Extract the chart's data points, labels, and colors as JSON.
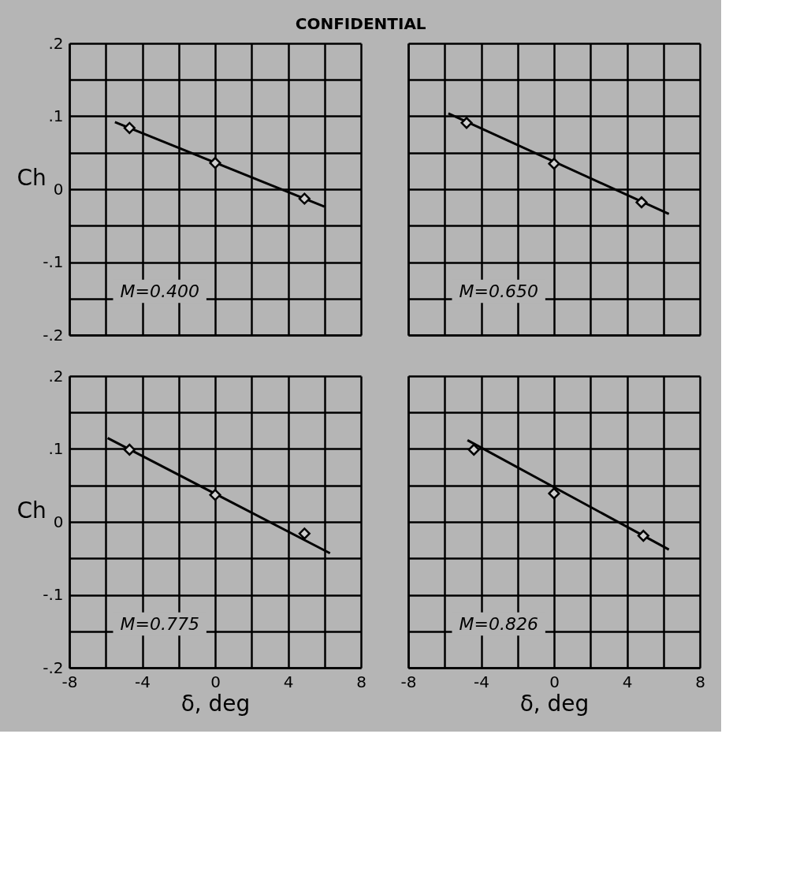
{
  "chart_data": [
    {
      "type": "scatter",
      "title": "CONFIDENTIAL",
      "ylabel": "Ch",
      "annotations": [
        "M=0.400"
      ],
      "xlim": [
        -8,
        8
      ],
      "ylim": [
        -0.2,
        0.2
      ],
      "xticks": [
        {
          "value": -8,
          "label": null
        },
        {
          "value": -6,
          "label": null
        },
        {
          "value": -4,
          "label": null
        },
        {
          "value": -2,
          "label": null
        },
        {
          "value": 0,
          "label": null
        },
        {
          "value": 2,
          "label": null
        },
        {
          "value": 4,
          "label": null
        },
        {
          "value": 6,
          "label": null
        },
        {
          "value": 8,
          "label": null
        }
      ],
      "yticks": [
        {
          "value": -0.2,
          "label": "-.2"
        },
        {
          "value": -0.15,
          "label": null
        },
        {
          "value": -0.1,
          "label": "-.1"
        },
        {
          "value": -0.05,
          "label": null
        },
        0,
        {
          "value": 0.05,
          "label": null
        },
        {
          "value": 0.1,
          "label": ".1"
        },
        {
          "value": 0.15,
          "label": null
        },
        {
          "value": 0.2,
          "label": ".2"
        }
      ],
      "grid": true,
      "tick_labels": "y",
      "series": [
        {
          "type": "line",
          "color": "#000000",
          "line_style": "solid",
          "marker": "none",
          "x": [
            -5.5,
            6.0
          ],
          "values": [
            0.092,
            -0.024
          ]
        },
        {
          "type": "scatter",
          "color": "#000000",
          "marker": "diamond",
          "x": [
            -4.7,
            0,
            4.9
          ],
          "values": [
            0.084,
            0.036,
            -0.013
          ]
        }
      ]
    },
    {
      "type": "scatter",
      "annotations": [
        "M=0.650"
      ],
      "xlim": [
        -8,
        8
      ],
      "ylim": [
        -0.2,
        0.2
      ],
      "xticks": [
        {
          "value": -8,
          "label": null
        },
        {
          "value": -6,
          "label": null
        },
        {
          "value": -4,
          "label": null
        },
        {
          "value": -2,
          "label": null
        },
        {
          "value": 0,
          "label": null
        },
        {
          "value": 2,
          "label": null
        },
        {
          "value": 4,
          "label": null
        },
        {
          "value": 6,
          "label": null
        },
        {
          "value": 8,
          "label": null
        }
      ],
      "yticks": [
        {
          "value": -0.2,
          "label": null
        },
        {
          "value": -0.15,
          "label": null
        },
        {
          "value": -0.1,
          "label": null
        },
        {
          "value": -0.05,
          "label": null
        },
        {
          "value": 0,
          "label": null
        },
        {
          "value": 0.05,
          "label": null
        },
        {
          "value": 0.1,
          "label": null
        },
        {
          "value": 0.15,
          "label": null
        },
        {
          "value": 0.2,
          "label": null
        }
      ],
      "grid": true,
      "tick_labels": false,
      "series": [
        {
          "type": "line",
          "color": "#000000",
          "line_style": "solid",
          "marker": "none",
          "x": [
            -5.8,
            6.3
          ],
          "values": [
            0.104,
            -0.034
          ]
        },
        {
          "type": "scatter",
          "color": "#000000",
          "marker": "diamond",
          "x": [
            -4.8,
            0,
            4.8
          ],
          "values": [
            0.091,
            0.035,
            -0.018
          ]
        }
      ]
    },
    {
      "type": "scatter",
      "ylabel": "Ch",
      "xlabel": "δ, deg",
      "annotations": [
        "M=0.775"
      ],
      "xlim": [
        -8,
        8
      ],
      "ylim": [
        -0.2,
        0.2
      ],
      "xticks": [
        -8,
        {
          "value": -6,
          "label": null
        },
        -4,
        {
          "value": -2,
          "label": null
        },
        0,
        {
          "value": 2,
          "label": null
        },
        4,
        {
          "value": 6,
          "label": null
        },
        8
      ],
      "yticks": [
        {
          "value": -0.2,
          "label": "-.2"
        },
        {
          "value": -0.15,
          "label": null
        },
        {
          "value": -0.1,
          "label": "-.1"
        },
        {
          "value": -0.05,
          "label": null
        },
        0,
        {
          "value": 0.05,
          "label": null
        },
        {
          "value": 0.1,
          "label": ".1"
        },
        {
          "value": 0.15,
          "label": null
        },
        {
          "value": 0.2,
          "label": ".2"
        }
      ],
      "grid": true,
      "series": [
        {
          "type": "line",
          "color": "#000000",
          "line_style": "solid",
          "marker": "none",
          "x": [
            -5.9,
            6.3
          ],
          "values": [
            0.115,
            -0.043
          ]
        },
        {
          "type": "scatter",
          "color": "#000000",
          "marker": "diamond",
          "x": [
            -4.7,
            0,
            4.9
          ],
          "values": [
            0.099,
            0.037,
            -0.016
          ]
        }
      ]
    },
    {
      "type": "scatter",
      "xlabel": "δ, deg",
      "annotations": [
        "M=0.826"
      ],
      "xlim": [
        -8,
        8
      ],
      "ylim": [
        -0.2,
        0.2
      ],
      "xticks": [
        -8,
        {
          "value": -6,
          "label": null
        },
        -4,
        {
          "value": -2,
          "label": null
        },
        0,
        {
          "value": 2,
          "label": null
        },
        4,
        {
          "value": 6,
          "label": null
        },
        8
      ],
      "yticks": [
        {
          "value": -0.2,
          "label": null
        },
        {
          "value": -0.15,
          "label": null
        },
        {
          "value": -0.1,
          "label": null
        },
        {
          "value": -0.05,
          "label": null
        },
        {
          "value": 0,
          "label": null
        },
        {
          "value": 0.05,
          "label": null
        },
        {
          "value": 0.1,
          "label": null
        },
        {
          "value": 0.15,
          "label": null
        },
        {
          "value": 0.2,
          "label": null
        }
      ],
      "grid": true,
      "tick_labels": "x",
      "series": [
        {
          "type": "line",
          "color": "#000000",
          "line_style": "solid",
          "marker": "none",
          "x": [
            -4.75,
            6.3
          ],
          "values": [
            0.112,
            -0.038
          ]
        },
        {
          "type": "scatter",
          "color": "#000000",
          "marker": "diamond",
          "x": [
            -4.4,
            0,
            4.9
          ],
          "values": [
            0.099,
            0.039,
            -0.019
          ]
        }
      ]
    }
  ]
}
